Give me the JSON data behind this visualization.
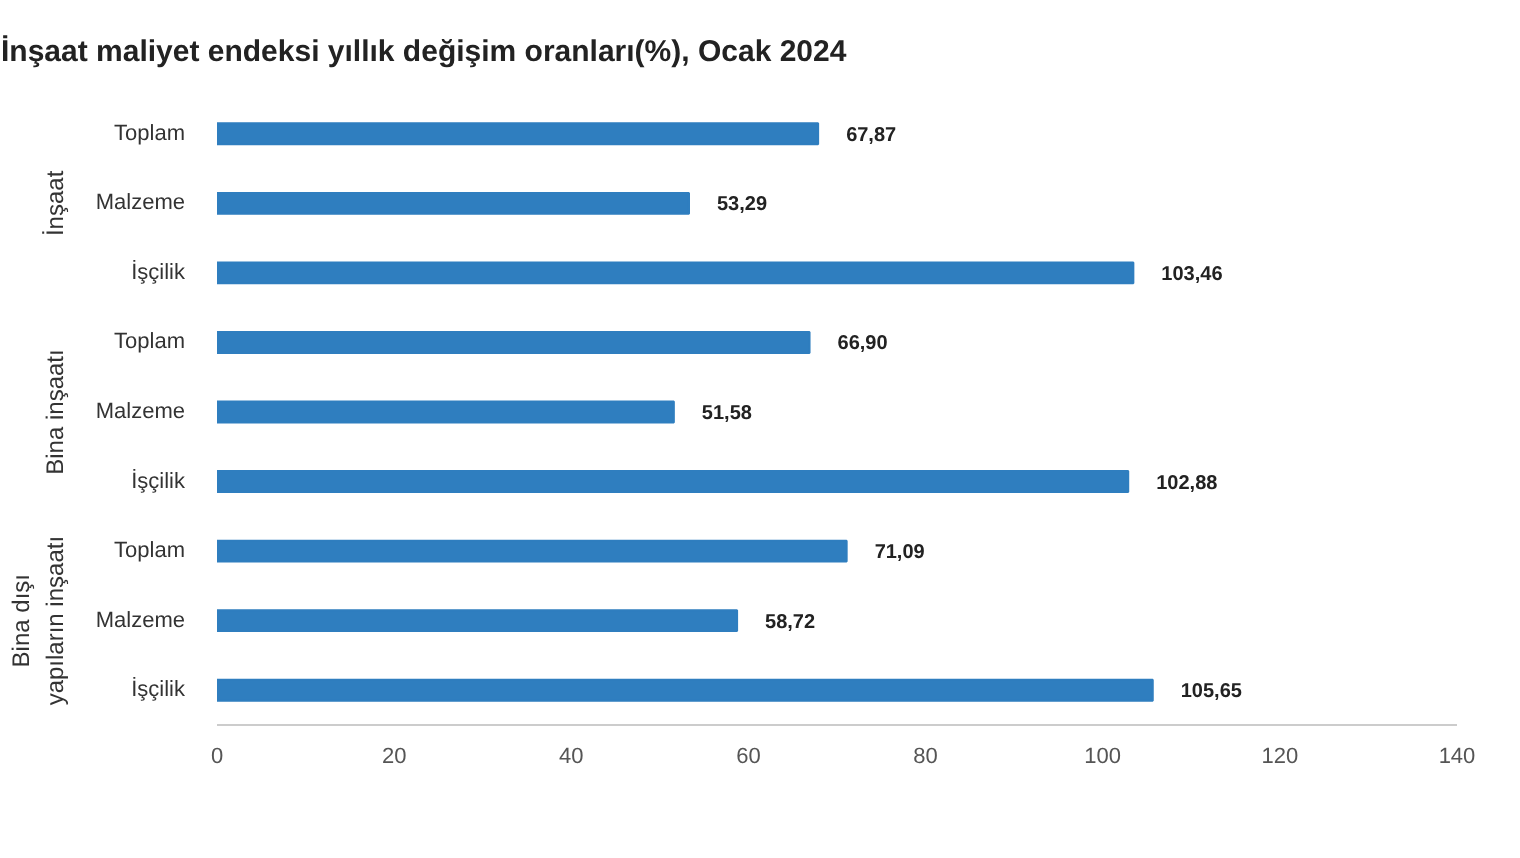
{
  "chart_data": {
    "type": "bar",
    "orientation": "horizontal",
    "title": "İnşaat maliyet endeksi yıllık değişim oranları(%), Ocak 2024",
    "categories": [
      "Toplam",
      "Malzeme",
      "İşçilik",
      "Toplam",
      "Malzeme",
      "İşçilik",
      "Toplam",
      "Malzeme",
      "İşçilik"
    ],
    "values": [
      67.87,
      53.29,
      103.46,
      66.9,
      51.58,
      102.88,
      71.09,
      58.72,
      105.65
    ],
    "value_labels": [
      "67,87",
      "53,29",
      "103,46",
      "66,90",
      "51,58",
      "102,88",
      "71,09",
      "58,72",
      "105,65"
    ],
    "color": "#2f7ebf",
    "annotations": [
      "İnşaat",
      "Bina inşaatı",
      "Bina dışı\nyapıların inşaatı"
    ],
    "xlim": [
      0,
      140
    ],
    "xticks": [
      0,
      20,
      40,
      60,
      80,
      100,
      120,
      140
    ]
  }
}
